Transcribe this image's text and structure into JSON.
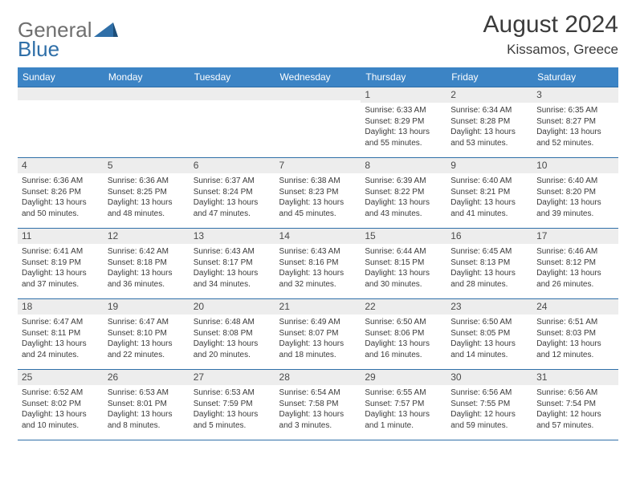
{
  "brand": {
    "word1": "General",
    "word2": "Blue"
  },
  "title": "August 2024",
  "subtitle": "Kissamos, Greece",
  "colors": {
    "header_bg": "#3c84c5",
    "header_text": "#ffffff",
    "daynum_bg": "#ededed",
    "rule": "#2f6fa8",
    "text": "#3a3a3a",
    "logo_gray": "#6f6f6f",
    "logo_blue": "#2f6fa8"
  },
  "weekdays": [
    "Sunday",
    "Monday",
    "Tuesday",
    "Wednesday",
    "Thursday",
    "Friday",
    "Saturday"
  ],
  "weeks": [
    [
      {
        "n": "",
        "lines": []
      },
      {
        "n": "",
        "lines": []
      },
      {
        "n": "",
        "lines": []
      },
      {
        "n": "",
        "lines": []
      },
      {
        "n": "1",
        "lines": [
          "Sunrise: 6:33 AM",
          "Sunset: 8:29 PM",
          "Daylight: 13 hours",
          "and 55 minutes."
        ]
      },
      {
        "n": "2",
        "lines": [
          "Sunrise: 6:34 AM",
          "Sunset: 8:28 PM",
          "Daylight: 13 hours",
          "and 53 minutes."
        ]
      },
      {
        "n": "3",
        "lines": [
          "Sunrise: 6:35 AM",
          "Sunset: 8:27 PM",
          "Daylight: 13 hours",
          "and 52 minutes."
        ]
      }
    ],
    [
      {
        "n": "4",
        "lines": [
          "Sunrise: 6:36 AM",
          "Sunset: 8:26 PM",
          "Daylight: 13 hours",
          "and 50 minutes."
        ]
      },
      {
        "n": "5",
        "lines": [
          "Sunrise: 6:36 AM",
          "Sunset: 8:25 PM",
          "Daylight: 13 hours",
          "and 48 minutes."
        ]
      },
      {
        "n": "6",
        "lines": [
          "Sunrise: 6:37 AM",
          "Sunset: 8:24 PM",
          "Daylight: 13 hours",
          "and 47 minutes."
        ]
      },
      {
        "n": "7",
        "lines": [
          "Sunrise: 6:38 AM",
          "Sunset: 8:23 PM",
          "Daylight: 13 hours",
          "and 45 minutes."
        ]
      },
      {
        "n": "8",
        "lines": [
          "Sunrise: 6:39 AM",
          "Sunset: 8:22 PM",
          "Daylight: 13 hours",
          "and 43 minutes."
        ]
      },
      {
        "n": "9",
        "lines": [
          "Sunrise: 6:40 AM",
          "Sunset: 8:21 PM",
          "Daylight: 13 hours",
          "and 41 minutes."
        ]
      },
      {
        "n": "10",
        "lines": [
          "Sunrise: 6:40 AM",
          "Sunset: 8:20 PM",
          "Daylight: 13 hours",
          "and 39 minutes."
        ]
      }
    ],
    [
      {
        "n": "11",
        "lines": [
          "Sunrise: 6:41 AM",
          "Sunset: 8:19 PM",
          "Daylight: 13 hours",
          "and 37 minutes."
        ]
      },
      {
        "n": "12",
        "lines": [
          "Sunrise: 6:42 AM",
          "Sunset: 8:18 PM",
          "Daylight: 13 hours",
          "and 36 minutes."
        ]
      },
      {
        "n": "13",
        "lines": [
          "Sunrise: 6:43 AM",
          "Sunset: 8:17 PM",
          "Daylight: 13 hours",
          "and 34 minutes."
        ]
      },
      {
        "n": "14",
        "lines": [
          "Sunrise: 6:43 AM",
          "Sunset: 8:16 PM",
          "Daylight: 13 hours",
          "and 32 minutes."
        ]
      },
      {
        "n": "15",
        "lines": [
          "Sunrise: 6:44 AM",
          "Sunset: 8:15 PM",
          "Daylight: 13 hours",
          "and 30 minutes."
        ]
      },
      {
        "n": "16",
        "lines": [
          "Sunrise: 6:45 AM",
          "Sunset: 8:13 PM",
          "Daylight: 13 hours",
          "and 28 minutes."
        ]
      },
      {
        "n": "17",
        "lines": [
          "Sunrise: 6:46 AM",
          "Sunset: 8:12 PM",
          "Daylight: 13 hours",
          "and 26 minutes."
        ]
      }
    ],
    [
      {
        "n": "18",
        "lines": [
          "Sunrise: 6:47 AM",
          "Sunset: 8:11 PM",
          "Daylight: 13 hours",
          "and 24 minutes."
        ]
      },
      {
        "n": "19",
        "lines": [
          "Sunrise: 6:47 AM",
          "Sunset: 8:10 PM",
          "Daylight: 13 hours",
          "and 22 minutes."
        ]
      },
      {
        "n": "20",
        "lines": [
          "Sunrise: 6:48 AM",
          "Sunset: 8:08 PM",
          "Daylight: 13 hours",
          "and 20 minutes."
        ]
      },
      {
        "n": "21",
        "lines": [
          "Sunrise: 6:49 AM",
          "Sunset: 8:07 PM",
          "Daylight: 13 hours",
          "and 18 minutes."
        ]
      },
      {
        "n": "22",
        "lines": [
          "Sunrise: 6:50 AM",
          "Sunset: 8:06 PM",
          "Daylight: 13 hours",
          "and 16 minutes."
        ]
      },
      {
        "n": "23",
        "lines": [
          "Sunrise: 6:50 AM",
          "Sunset: 8:05 PM",
          "Daylight: 13 hours",
          "and 14 minutes."
        ]
      },
      {
        "n": "24",
        "lines": [
          "Sunrise: 6:51 AM",
          "Sunset: 8:03 PM",
          "Daylight: 13 hours",
          "and 12 minutes."
        ]
      }
    ],
    [
      {
        "n": "25",
        "lines": [
          "Sunrise: 6:52 AM",
          "Sunset: 8:02 PM",
          "Daylight: 13 hours",
          "and 10 minutes."
        ]
      },
      {
        "n": "26",
        "lines": [
          "Sunrise: 6:53 AM",
          "Sunset: 8:01 PM",
          "Daylight: 13 hours",
          "and 8 minutes."
        ]
      },
      {
        "n": "27",
        "lines": [
          "Sunrise: 6:53 AM",
          "Sunset: 7:59 PM",
          "Daylight: 13 hours",
          "and 5 minutes."
        ]
      },
      {
        "n": "28",
        "lines": [
          "Sunrise: 6:54 AM",
          "Sunset: 7:58 PM",
          "Daylight: 13 hours",
          "and 3 minutes."
        ]
      },
      {
        "n": "29",
        "lines": [
          "Sunrise: 6:55 AM",
          "Sunset: 7:57 PM",
          "Daylight: 13 hours",
          "and 1 minute."
        ]
      },
      {
        "n": "30",
        "lines": [
          "Sunrise: 6:56 AM",
          "Sunset: 7:55 PM",
          "Daylight: 12 hours",
          "and 59 minutes."
        ]
      },
      {
        "n": "31",
        "lines": [
          "Sunrise: 6:56 AM",
          "Sunset: 7:54 PM",
          "Daylight: 12 hours",
          "and 57 minutes."
        ]
      }
    ]
  ]
}
